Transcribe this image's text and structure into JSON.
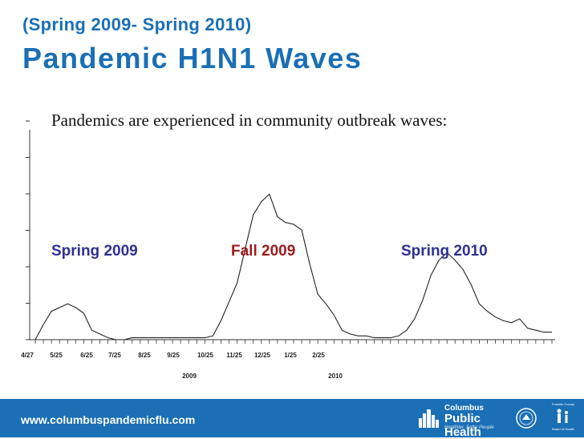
{
  "header": {
    "subtitle": "(Spring 2009- Spring 2010)",
    "title": "Pandemic H1N1 Waves"
  },
  "intro_text": "Pandemics are experienced in community outbreak waves:",
  "wave_labels": [
    {
      "text": "Spring 2009",
      "color": "#2e3192"
    },
    {
      "text": "Fall 2009",
      "color": "#9b1c1c"
    },
    {
      "text": "Spring 2010",
      "color": "#2e3192"
    }
  ],
  "chart_data": {
    "type": "line",
    "title": "",
    "xlabel": "",
    "ylabel": "",
    "x_tick_labels": [
      "4/27",
      "5/25",
      "6/25",
      "7/25",
      "8/25",
      "9/25",
      "10/25",
      "11/25",
      "12/25",
      "1/25",
      "2/25"
    ],
    "year_labels": [
      "2009",
      "2010"
    ],
    "ylim": [
      0,
      100
    ],
    "grid": false,
    "series": [
      {
        "color": "#222222",
        "x": [
          0,
          1,
          2,
          3,
          4,
          5,
          6,
          7,
          8,
          9,
          10,
          11,
          12,
          13,
          14,
          15,
          16,
          17,
          18,
          19,
          20,
          21,
          22,
          23,
          24,
          25,
          26,
          27,
          28,
          29,
          30,
          31,
          32,
          33,
          34,
          35,
          36,
          37,
          38,
          39,
          40,
          41,
          42,
          43,
          44,
          45,
          46,
          47,
          48,
          49,
          50,
          51,
          52,
          53,
          54,
          55,
          56,
          57,
          58,
          59,
          60,
          61,
          62,
          63,
          64
        ],
        "values": [
          0,
          8,
          15,
          17,
          19,
          17,
          14,
          5,
          3,
          1,
          0,
          0,
          1,
          1,
          1,
          1,
          1,
          1,
          1,
          1,
          1,
          1,
          2,
          10,
          20,
          30,
          48,
          66,
          73,
          77,
          65,
          62,
          61,
          58,
          40,
          24,
          19,
          13,
          5,
          3,
          2,
          2,
          1,
          1,
          1,
          2,
          5,
          11,
          21,
          34,
          42,
          46,
          42,
          37,
          29,
          19,
          15,
          12,
          10,
          9,
          11,
          6,
          5,
          4,
          4
        ]
      }
    ]
  },
  "footer": {
    "url": "www.columbuspandemicflu.com",
    "logo_top": "Columbus",
    "logo_main": "Public Health",
    "logo_tagline": "Healthier, Safer People",
    "county_top": "Franklin County",
    "county_bottom": "Board of Health",
    "bg_color": "#1a6fb5"
  }
}
